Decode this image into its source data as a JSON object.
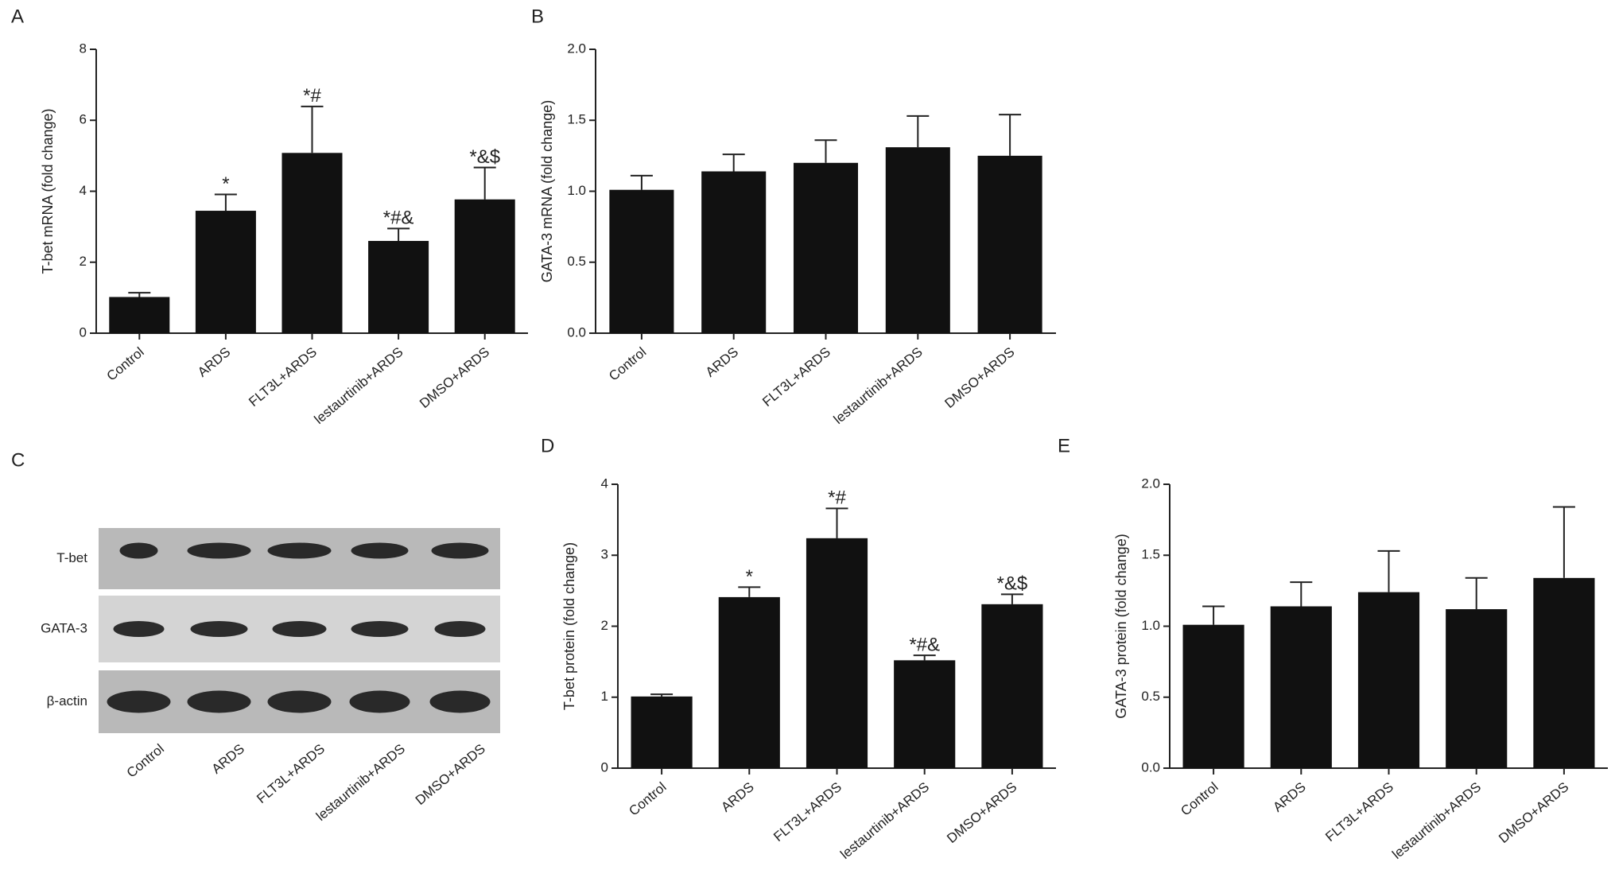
{
  "chart_data": [
    {
      "type": "bar",
      "panel": "A",
      "ylabel": "T-bet mRNA (fold change)",
      "categories": [
        "Control",
        "ARDS",
        "FLT3L+ARDS",
        "lestaurtinib+ARDS",
        "DMSO+ARDS"
      ],
      "values": [
        1.02,
        3.45,
        5.08,
        2.6,
        3.77
      ],
      "errors": [
        0.12,
        0.46,
        1.31,
        0.35,
        0.9
      ],
      "annotations": [
        null,
        "*",
        "*#",
        "*#&",
        "*&$"
      ],
      "color": "#111111",
      "ylim": [
        0,
        8
      ],
      "yticks": [
        0,
        2,
        4,
        6,
        8
      ]
    },
    {
      "type": "bar",
      "panel": "B",
      "ylabel": "GATA-3 mRNA (fold change)",
      "categories": [
        "Control",
        "ARDS",
        "FLT3L+ARDS",
        "lestaurtinib+ARDS",
        "DMSO+ARDS"
      ],
      "values": [
        1.01,
        1.14,
        1.2,
        1.31,
        1.25
      ],
      "errors": [
        0.1,
        0.12,
        0.16,
        0.22,
        0.29
      ],
      "color": "#111111",
      "ylim": [
        0,
        2
      ],
      "yticks": [
        {
          "value": 0,
          "label": "0.0"
        },
        {
          "value": 0.5,
          "label": "0.5"
        },
        {
          "value": 1,
          "label": "1.0"
        },
        {
          "value": 1.5,
          "label": "1.5"
        },
        {
          "value": 2,
          "label": "2.0"
        }
      ]
    },
    {
      "type": "bar",
      "panel": "D",
      "ylabel": "T-bet protein (fold change)",
      "categories": [
        "Control",
        "ARDS",
        "FLT3L+ARDS",
        "lestaurtinib+ARDS",
        "DMSO+ARDS"
      ],
      "values": [
        1.01,
        2.41,
        3.24,
        1.52,
        2.31
      ],
      "errors": [
        0.03,
        0.14,
        0.42,
        0.07,
        0.14
      ],
      "annotations": [
        null,
        "*",
        "*#",
        "*#&",
        "*&$"
      ],
      "color": "#111111",
      "ylim": [
        0,
        4
      ],
      "yticks": [
        0,
        1,
        2,
        3,
        4
      ]
    },
    {
      "type": "bar",
      "panel": "E",
      "ylabel": "GATA-3 protein (fold change)",
      "categories": [
        "Control",
        "ARDS",
        "FLT3L+ARDS",
        "lestaurtinib+ARDS",
        "DMSO+ARDS"
      ],
      "values": [
        1.01,
        1.14,
        1.24,
        1.12,
        1.34
      ],
      "errors": [
        0.13,
        0.17,
        0.29,
        0.22,
        0.5
      ],
      "color": "#111111",
      "ylim": [
        0,
        2
      ],
      "yticks": [
        {
          "value": 0,
          "label": "0.0"
        },
        {
          "value": 0.5,
          "label": "0.5"
        },
        {
          "value": 1,
          "label": "1.0"
        },
        {
          "value": 1.5,
          "label": "1.5"
        },
        {
          "value": 2,
          "label": "2.0"
        }
      ]
    }
  ],
  "blot": {
    "panel": "C",
    "proteins": [
      "T-bet",
      "GATA-3",
      "β-actin"
    ],
    "categories": [
      "Control",
      "ARDS",
      "FLT3L+ARDS",
      "lestaurtinib+ARDS",
      "DMSO+ARDS"
    ]
  }
}
